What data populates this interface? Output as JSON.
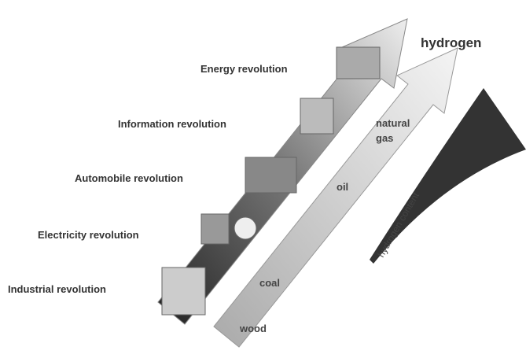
{
  "revolutions": [
    "Energy revolution",
    "Information revolution",
    "Automobile revolution",
    "Electricity revolution",
    "Industrial revolution"
  ],
  "fuels": {
    "hydrogen": "hydrogen",
    "natural_gas": [
      "natural",
      "gas"
    ],
    "oil": "oil",
    "coal": "coal",
    "wood": "wood"
  },
  "content_label": "hydrogen content"
}
